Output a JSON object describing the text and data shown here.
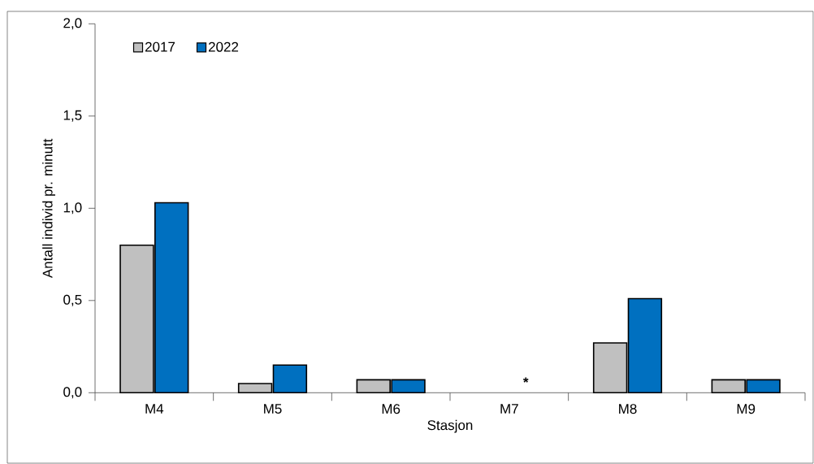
{
  "chart_data": {
    "type": "bar",
    "xlabel": "Stasjon",
    "ylabel": "Antall individ pr. minutt",
    "categories": [
      "M4",
      "M5",
      "M6",
      "M7",
      "M8",
      "M9"
    ],
    "series": [
      {
        "name": "2017",
        "color": "#c0c0c0",
        "values": [
          0.8,
          0.05,
          0.07,
          null,
          0.27,
          0.07
        ]
      },
      {
        "name": "2022",
        "color": "#0070c0",
        "values": [
          1.03,
          0.15,
          0.07,
          null,
          0.51,
          0.07
        ]
      }
    ],
    "ylim": [
      0,
      2.0
    ],
    "yticks": [
      {
        "value": 0,
        "label": "0,0"
      },
      {
        "value": 0.5,
        "label": "0,5"
      },
      {
        "value": 1.0,
        "label": "1,0"
      },
      {
        "value": 1.5,
        "label": "1,5"
      },
      {
        "value": 2.0,
        "label": "2,0"
      }
    ],
    "annotations": [
      "*"
    ],
    "grid": false,
    "legend": "top left"
  }
}
